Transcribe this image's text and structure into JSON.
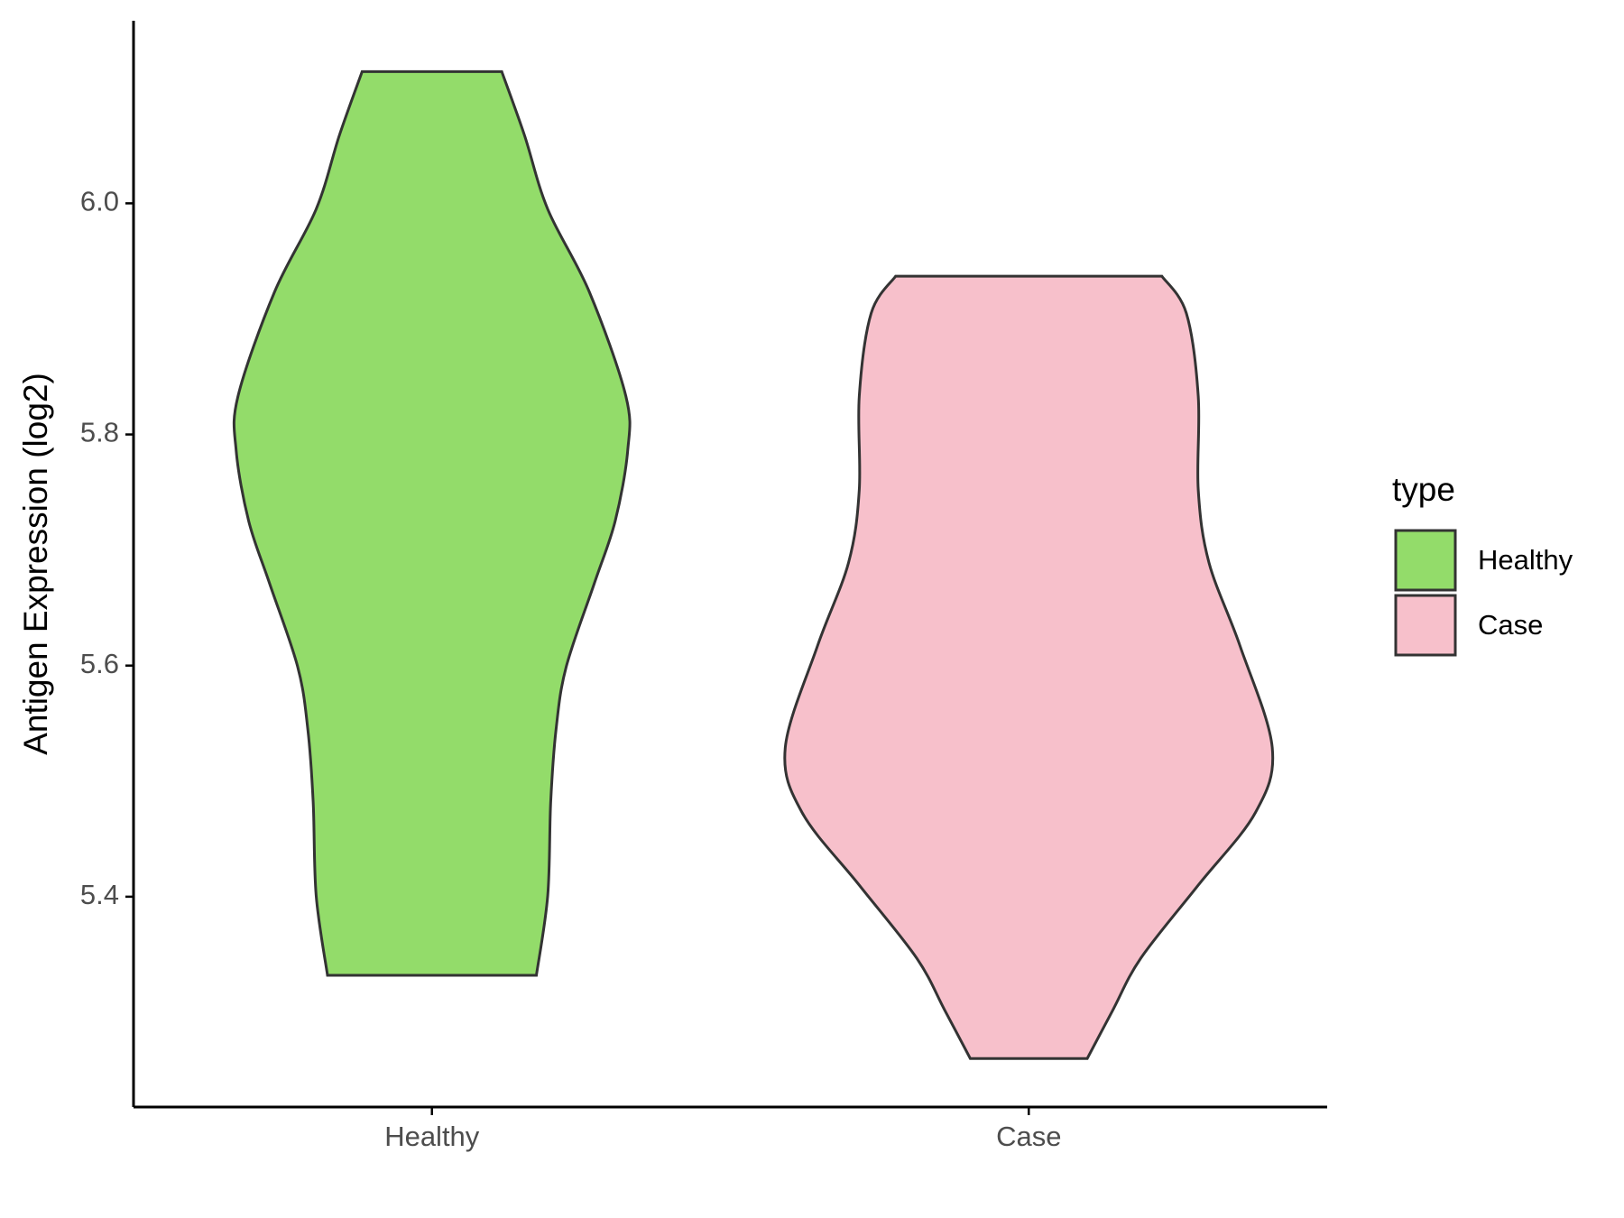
{
  "chart_data": {
    "type": "violin",
    "y_label": "Antigen Expression (log2)",
    "categories": [
      "Healthy",
      "Case"
    ],
    "legend_title": "type",
    "series": [
      {
        "name": "Healthy",
        "color": "#93DC6A",
        "y": [
          6.114,
          6.059,
          5.995,
          5.923,
          5.833,
          5.786,
          5.725,
          5.671,
          5.599,
          5.545,
          5.482,
          5.401,
          5.332
        ],
        "widths": [
          0.117,
          0.155,
          0.194,
          0.264,
          0.325,
          0.328,
          0.307,
          0.272,
          0.225,
          0.208,
          0.199,
          0.194,
          0.175
        ]
      },
      {
        "name": "Case",
        "color": "#F7C0CB",
        "y": [
          5.937,
          5.905,
          5.833,
          5.752,
          5.689,
          5.617,
          5.529,
          5.473,
          5.41,
          5.347,
          5.302,
          5.26
        ],
        "widths": [
          0.223,
          0.264,
          0.284,
          0.284,
          0.302,
          0.354,
          0.408,
          0.38,
          0.284,
          0.188,
          0.141,
          0.098
        ]
      }
    ],
    "ylim": [
      5.218,
      6.158
    ],
    "yticks": [
      5.4,
      5.6,
      5.8,
      {
        "value": 6,
        "label": "6.0"
      }
    ],
    "grid": false
  }
}
